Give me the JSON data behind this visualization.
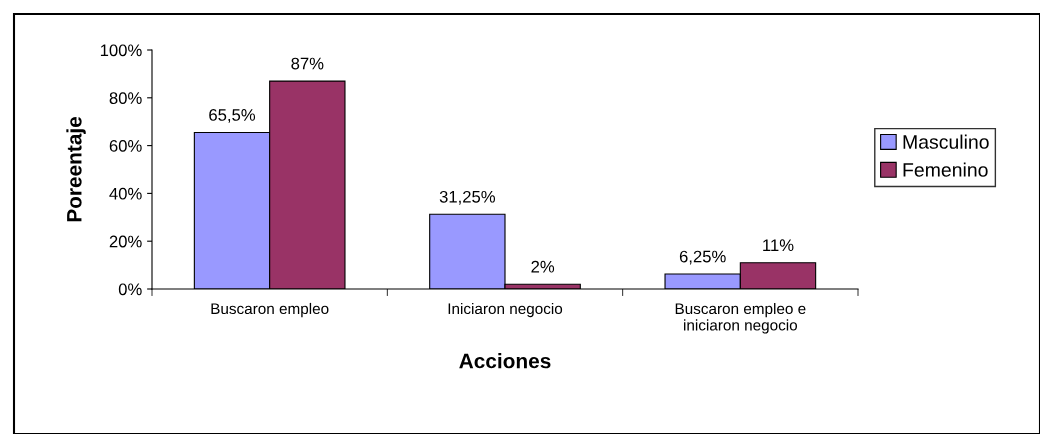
{
  "chart_data": {
    "type": "bar",
    "xlabel": "Acciones",
    "ylabel": "Poreentaje",
    "categories": [
      "Buscaron empleo",
      "Iniciaron negocio",
      "Buscaron empleo e\niniciaron negocio"
    ],
    "series": [
      {
        "name": "Masculino",
        "color": "#9999ff",
        "values": [
          65.5,
          31.25,
          6.25
        ],
        "value_labels": [
          "65,5%",
          "31,25%",
          "6,25%"
        ]
      },
      {
        "name": "Femenino",
        "color": "#993366",
        "values": [
          87,
          2,
          11
        ],
        "value_labels": [
          "87%",
          "2%",
          "11%"
        ]
      }
    ],
    "ylim": [
      0,
      100
    ],
    "yticks": [
      {
        "value": 0,
        "label": "0%"
      },
      {
        "value": 20,
        "label": "20%"
      },
      {
        "value": 40,
        "label": "40%"
      },
      {
        "value": 60,
        "label": "60%"
      },
      {
        "value": 80,
        "label": "80%"
      },
      {
        "value": 100,
        "label": "100%"
      }
    ],
    "grid": false,
    "legend": "right"
  }
}
